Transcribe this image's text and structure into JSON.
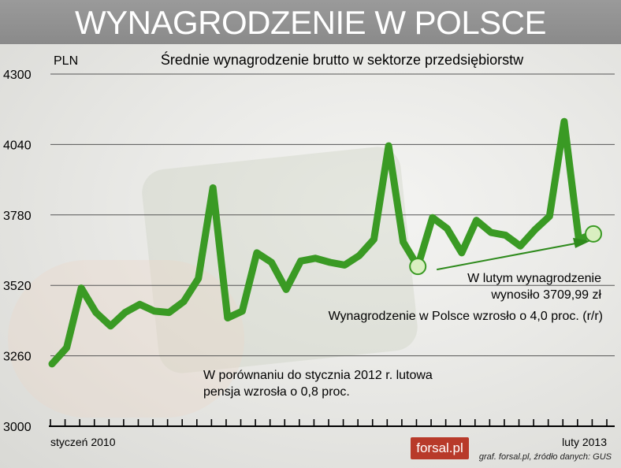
{
  "banner": {
    "title": "WYNAGRODZENIE W POLSCE"
  },
  "logo": {
    "text": "forsal.pl"
  },
  "source": "graf. forsal.pl, źródło danych: GUS",
  "colors": {
    "line": "#3a9a24",
    "marker_fill": "#d9efc0",
    "arrow": "#2e8a1c",
    "banner": "#909090"
  },
  "annotations": {
    "latest_line1": "W lutym wynagrodzenie",
    "latest_line2": "wynosiło 3709,99 zł",
    "yoy": "Wynagrodzenie w Polsce wzrosło o 4,0 proc. (r/r)",
    "compare_line1": "W porównaniu do stycznia 2012 r. lutowa",
    "compare_line2": "pensja wzrosła o 0,8 proc."
  },
  "chart_data": {
    "type": "line",
    "title": "Średnie wynagrodzenie brutto w sektorze przedsiębiorstw",
    "ylabel": "PLN",
    "ylim": [
      3000,
      4300
    ],
    "yticks": [
      3000,
      3260,
      3520,
      3780,
      4040,
      4300
    ],
    "ytick_labels": [
      "3000",
      "3260",
      "3520",
      "3780",
      "4040",
      "4300"
    ],
    "x_start_label": "styczeń 2010",
    "x_end_label": "luty 2013",
    "grid": true,
    "series": [
      {
        "values": [
          3230,
          3290,
          3510,
          3420,
          3370,
          3420,
          3450,
          3425,
          3420,
          3460,
          3545,
          3880,
          3400,
          3425,
          3640,
          3605,
          3505,
          3610,
          3620,
          3605,
          3595,
          3630,
          3690,
          4035,
          3680,
          3590,
          3770,
          3730,
          3640,
          3760,
          3715,
          3705,
          3665,
          3725,
          3775,
          4125,
          3690,
          3710
        ]
      }
    ],
    "highlight_points": [
      25,
      37
    ]
  }
}
